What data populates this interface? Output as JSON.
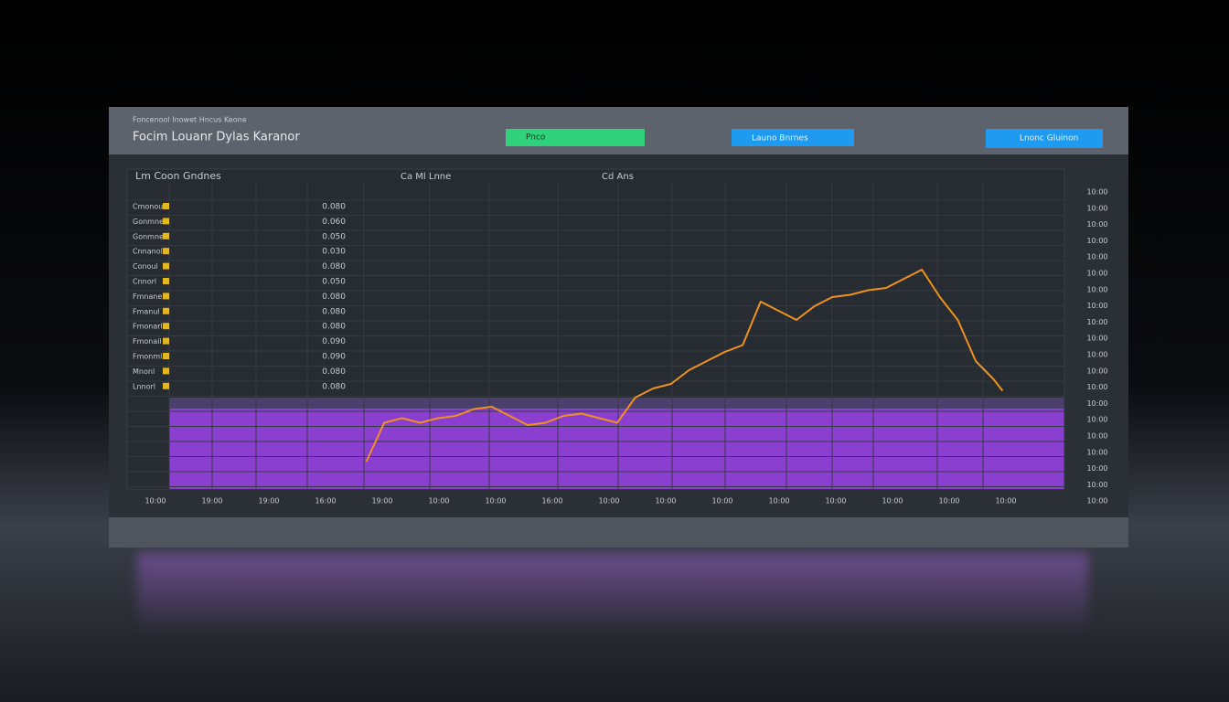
{
  "header": {
    "subtitle": "Foncenool Inowet Hncus Keone",
    "title": "Focim Louanr Dylas Karanor",
    "buttons": [
      "Pnco",
      "Launo Bnrnes",
      "Lnonc Gluinon"
    ]
  },
  "panel": {
    "heading": "Lm Coon Gndnes",
    "rows": [
      [
        "Cmonoul",
        "0.080"
      ],
      [
        "Gonmnel",
        "0.060"
      ],
      [
        "Gonmnel",
        "0.050"
      ],
      [
        "Cnnanol",
        "0.030"
      ],
      [
        "Conoul",
        "0.080"
      ],
      [
        "Cnnorl",
        "0.050"
      ],
      [
        "Fmnanel",
        "0.080"
      ],
      [
        "Fmanul",
        "0.080"
      ],
      [
        "Fmonarl",
        "0.080"
      ],
      [
        "Fmonail",
        "0.090"
      ],
      [
        "Fmonml",
        "0.090"
      ],
      [
        "Mnonl",
        "0.080"
      ],
      [
        "Lnnorl",
        "0.080"
      ]
    ]
  },
  "chart_headers": [
    "Ca Ml Lnne",
    "Cd Ans"
  ],
  "x_labels": [
    "10:00",
    "19:00",
    "19:00",
    "16:00",
    "19:00",
    "10:00",
    "10:00",
    "16:00",
    "10:00",
    "10:00",
    "10:00",
    "10:00",
    "10:00",
    "10:00",
    "10:00",
    "10:00"
  ],
  "y_labels": [
    "10:00",
    "10:00",
    "10:00",
    "10:00",
    "10:00",
    "10:00",
    "10:00",
    "10:00",
    "10:00",
    "10:00",
    "10:00",
    "10:00",
    "10:00",
    "10:00",
    "10:00",
    "10:00",
    "10:00",
    "10:00",
    "10:00",
    "10:00"
  ],
  "chart_data": {
    "type": "line",
    "xlim": [
      0,
      100
    ],
    "ylim": [
      0,
      100
    ],
    "x": [
      22,
      24,
      26,
      28,
      30,
      32,
      34,
      36,
      38,
      40,
      42,
      44,
      46,
      48,
      50,
      52,
      54,
      56,
      58,
      60,
      62,
      64,
      66,
      68,
      70,
      72,
      74,
      76,
      78,
      80,
      82,
      84,
      86,
      88,
      90,
      92,
      93
    ],
    "series": [
      {
        "color": "#f0921e",
        "values": [
          12,
          29,
          31,
          29,
          31,
          32,
          35,
          36,
          32,
          28,
          29,
          32,
          33,
          31,
          29,
          40,
          44,
          46,
          52,
          56,
          60,
          63,
          82,
          78,
          74,
          80,
          84,
          85,
          87,
          88,
          92,
          96,
          84,
          74,
          56,
          48,
          43
        ]
      }
    ]
  }
}
